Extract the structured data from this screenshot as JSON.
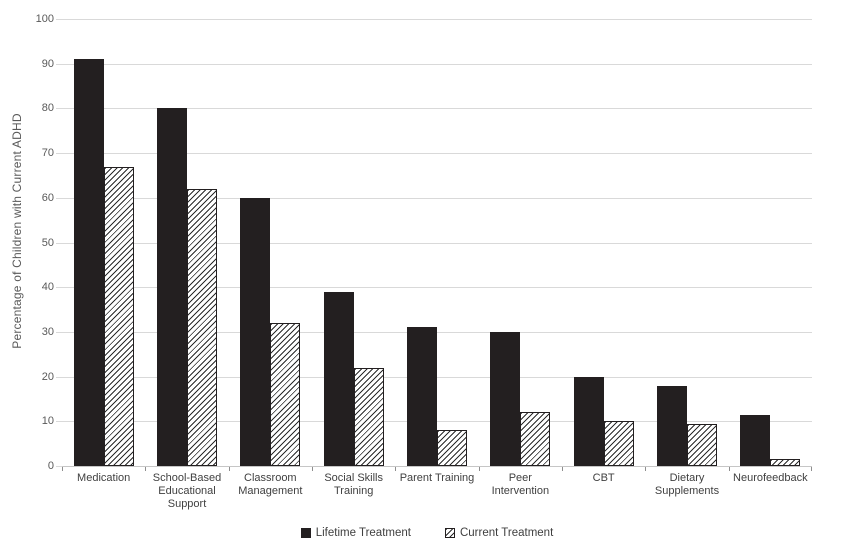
{
  "chart_data": {
    "type": "bar",
    "title": "",
    "xlabel": "",
    "ylabel": "Percentage of Children with Current ADHD",
    "ylim": [
      0,
      100
    ],
    "yticks": [
      0,
      10,
      20,
      30,
      40,
      50,
      60,
      70,
      80,
      90,
      100
    ],
    "grid": "horizontal",
    "legend_position": "bottom-center",
    "categories": [
      "Medication",
      "School-Based\nEducational\nSupport",
      "Classroom\nManagement",
      "Social Skills\nTraining",
      "Parent Training",
      "Peer\nIntervention",
      "CBT",
      "Dietary\nSupplements",
      "Neurofeedback"
    ],
    "series": [
      {
        "name": "Lifetime Treatment",
        "style": "solid",
        "values": [
          91,
          80,
          60,
          39,
          31,
          30,
          20,
          18,
          11.5
        ]
      },
      {
        "name": "Current Treatment",
        "style": "hatched",
        "values": [
          67,
          62,
          32,
          22,
          8,
          12,
          10,
          9.5,
          1.5
        ]
      }
    ],
    "colors": {
      "bar_fill": "#231f20",
      "hatch_line": "#2b2b2b",
      "hatch_bg": "#ffffff",
      "gridline": "#d9d9d9",
      "axis_line": "#c6c6c6",
      "tick_label": "#595959",
      "category_label": "#404040",
      "legend_label": "#404040",
      "axis_title": "#595959"
    },
    "legend_icons": [
      "solid-square-icon",
      "hatched-square-icon"
    ]
  }
}
